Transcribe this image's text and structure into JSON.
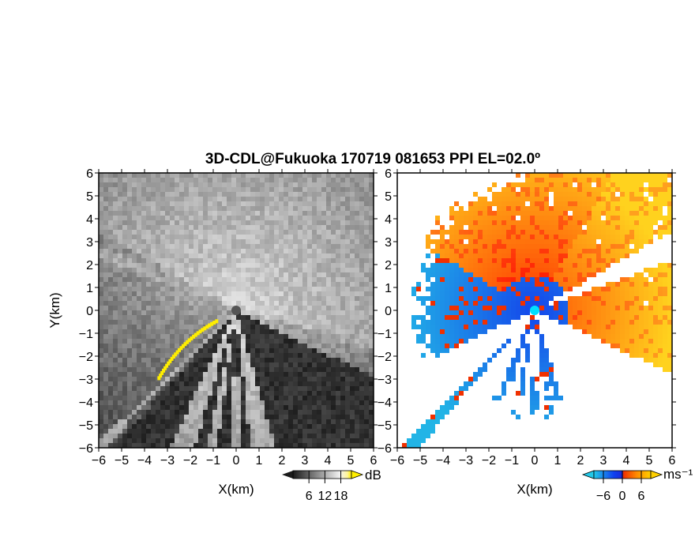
{
  "title": "3D-CDL@Fukuoka 170719 081653 PPI EL=02.0º",
  "colors": {
    "background": "#ffffff",
    "axis": "#000000",
    "snr_low": "#1c1c1c",
    "snr_high": "#f0f0f0",
    "snr_saturated": "#ffee00",
    "vel_light_blue": "#22c8e8",
    "vel_blue": "#1040f0",
    "vel_red": "#f03000",
    "vel_orange": "#ff8a00",
    "vel_yellow": "#ffd000",
    "radar_site_left": "#555555",
    "radar_site_right": "#00e0ff"
  },
  "chart_data": [
    {
      "type": "heatmap",
      "name": "snr-ppi",
      "xlabel": "X(km)",
      "ylabel": "Y(km)",
      "xlim": [
        -6,
        6
      ],
      "ylim": [
        -6,
        6
      ],
      "ticks": [
        -6,
        -5,
        -4,
        -3,
        -2,
        -1,
        0,
        1,
        2,
        3,
        4,
        5,
        6
      ],
      "tick_labels": [
        "−6",
        "−5",
        "−4",
        "−3",
        "−2",
        "−1",
        "0",
        "1",
        "2",
        "3",
        "4",
        "5",
        "6"
      ],
      "colorbar": {
        "unit": "dB",
        "ticks": [
          6,
          12,
          18
        ],
        "tick_labels": [
          "6",
          "12",
          "18"
        ],
        "range": [
          0,
          22
        ],
        "colormap": "gray"
      },
      "blocked_sectors_deg": [
        [
          228,
          244
        ],
        [
          253,
          258
        ],
        [
          262,
          268
        ],
        [
          272,
          276
        ],
        [
          286,
          334
        ]
      ],
      "weak_beams_deg": [
        156,
        158,
        225,
        345
      ],
      "saturated_edge_deg": [
        203,
        220
      ]
    },
    {
      "type": "heatmap",
      "name": "doppler-velocity-ppi",
      "xlabel": "X(km)",
      "ylabel": "",
      "xlim": [
        -6,
        6
      ],
      "ylim": [
        -6,
        6
      ],
      "ticks": [
        -6,
        -5,
        -4,
        -3,
        -2,
        -1,
        0,
        1,
        2,
        3,
        4,
        5,
        6
      ],
      "tick_labels": [
        "−6",
        "−5",
        "−4",
        "−3",
        "−2",
        "−1",
        "0",
        "1",
        "2",
        "3",
        "4",
        "5",
        "6"
      ],
      "colorbar": {
        "unit": "ms⁻¹",
        "ticks": [
          -6,
          0,
          6
        ],
        "tick_labels": [
          "−6",
          "0",
          "6"
        ],
        "range": [
          -9,
          9
        ],
        "colormap": "jet-like"
      },
      "missing_sectors_deg": [
        [
          20,
          30
        ],
        [
          205,
          225
        ],
        [
          230,
          245
        ],
        [
          253,
          258
        ],
        [
          262,
          268
        ],
        [
          272,
          276
        ],
        [
          287,
          335
        ]
      ]
    }
  ]
}
